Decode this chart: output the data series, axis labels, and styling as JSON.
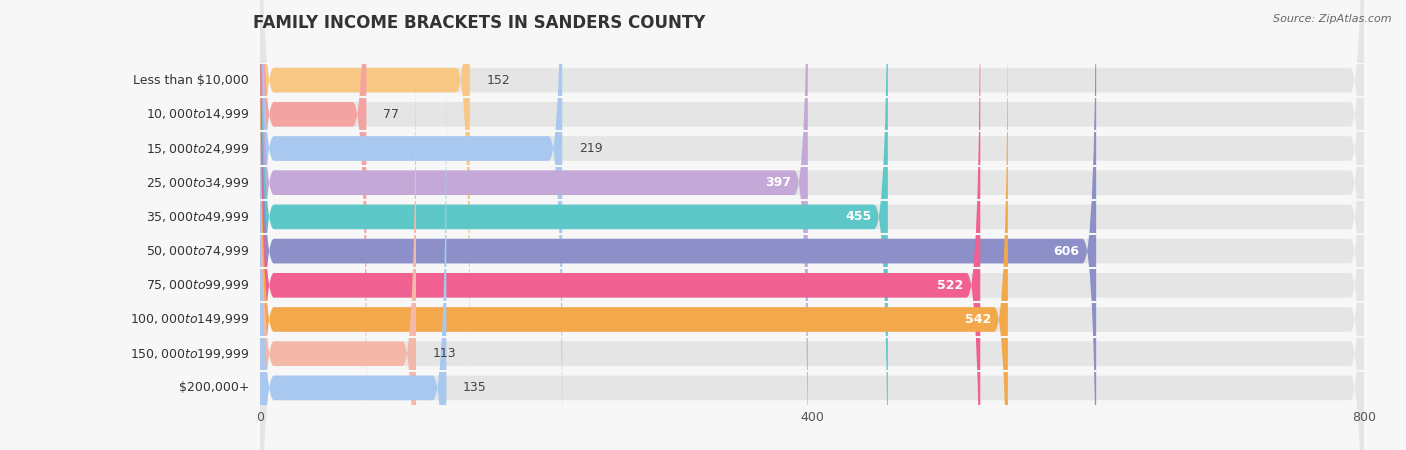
{
  "title": "FAMILY INCOME BRACKETS IN SANDERS COUNTY",
  "source": "Source: ZipAtlas.com",
  "categories": [
    "Less than $10,000",
    "$10,000 to $14,999",
    "$15,000 to $24,999",
    "$25,000 to $34,999",
    "$35,000 to $49,999",
    "$50,000 to $74,999",
    "$75,000 to $99,999",
    "$100,000 to $149,999",
    "$150,000 to $199,999",
    "$200,000+"
  ],
  "values": [
    152,
    77,
    219,
    397,
    455,
    606,
    522,
    542,
    113,
    135
  ],
  "bar_colors": [
    "#F9C784",
    "#F4A3A3",
    "#A8C8F0",
    "#C4A8D8",
    "#5EC8C8",
    "#8C8FC8",
    "#F06090",
    "#F4A84C",
    "#F4B8A8",
    "#A8C8F0"
  ],
  "xlim": [
    0,
    800
  ],
  "xticks": [
    0,
    400,
    800
  ],
  "background_color": "#f7f7f7",
  "bar_background_color": "#e5e5e5",
  "title_fontsize": 12,
  "label_fontsize": 9,
  "value_fontsize": 9,
  "value_threshold": 300
}
